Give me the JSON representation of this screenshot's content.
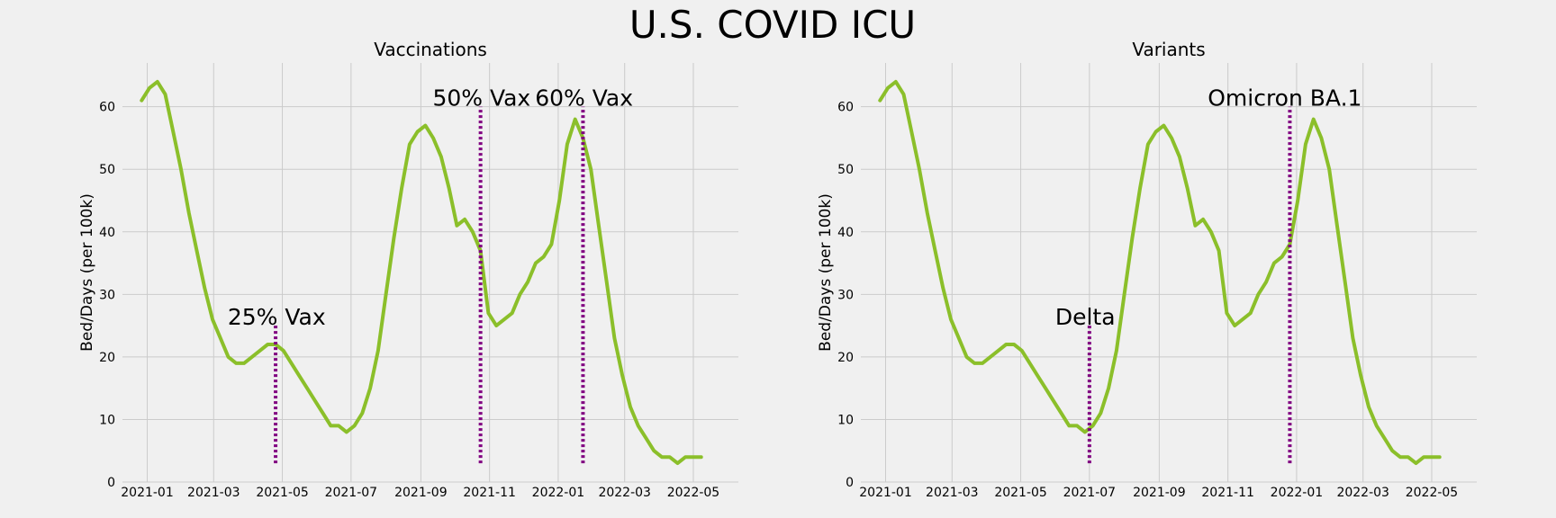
{
  "title": "U.S. COVID ICU",
  "chart_data": [
    {
      "type": "line",
      "title": "Vaccinations",
      "ylabel": "Bed/Days (per 100k)",
      "xlabel": "",
      "grid": true,
      "xlim": [
        "2020-12-10",
        "2022-06-10"
      ],
      "ylim": [
        0,
        67
      ],
      "x_ticks": [
        "2021-01",
        "2021-03",
        "2021-05",
        "2021-07",
        "2021-09",
        "2021-11",
        "2022-01",
        "2022-03",
        "2022-05"
      ],
      "y_ticks": [
        0,
        10,
        20,
        30,
        40,
        50,
        60
      ],
      "series": [
        {
          "color": "#8bbf2a",
          "x": [
            "2020-12-27",
            "2021-01-03",
            "2021-01-10",
            "2021-01-17",
            "2021-01-24",
            "2021-01-31",
            "2021-02-07",
            "2021-02-14",
            "2021-02-21",
            "2021-02-28",
            "2021-03-07",
            "2021-03-14",
            "2021-03-21",
            "2021-03-28",
            "2021-04-04",
            "2021-04-11",
            "2021-04-18",
            "2021-04-25",
            "2021-05-02",
            "2021-05-09",
            "2021-05-16",
            "2021-05-23",
            "2021-05-30",
            "2021-06-06",
            "2021-06-13",
            "2021-06-20",
            "2021-06-27",
            "2021-07-04",
            "2021-07-11",
            "2021-07-18",
            "2021-07-25",
            "2021-08-01",
            "2021-08-08",
            "2021-08-15",
            "2021-08-22",
            "2021-08-29",
            "2021-09-05",
            "2021-09-12",
            "2021-09-19",
            "2021-09-26",
            "2021-10-03",
            "2021-10-10",
            "2021-10-17",
            "2021-10-24",
            "2021-10-31",
            "2021-11-07",
            "2021-11-14",
            "2021-11-21",
            "2021-11-28",
            "2021-12-05",
            "2021-12-12",
            "2021-12-19",
            "2021-12-26",
            "2022-01-02",
            "2022-01-09",
            "2022-01-16",
            "2022-01-23",
            "2022-01-30",
            "2022-02-06",
            "2022-02-13",
            "2022-02-20",
            "2022-02-27",
            "2022-03-06",
            "2022-03-13",
            "2022-03-20",
            "2022-03-27",
            "2022-04-03",
            "2022-04-10",
            "2022-04-17",
            "2022-04-24",
            "2022-05-01",
            "2022-05-08"
          ],
          "values": [
            61,
            63,
            64,
            62,
            56,
            50,
            43,
            37,
            31,
            26,
            23,
            20,
            19,
            19,
            20,
            21,
            22,
            22,
            21,
            19,
            17,
            15,
            13,
            11,
            9,
            9,
            8,
            9,
            11,
            15,
            21,
            30,
            39,
            47,
            54,
            56,
            57,
            55,
            52,
            47,
            41,
            42,
            40,
            37,
            27,
            25,
            26,
            27,
            30,
            32,
            35,
            36,
            38,
            45,
            54,
            58,
            55,
            50,
            41,
            32,
            23,
            17,
            12,
            9,
            7,
            5,
            4,
            4,
            3,
            4,
            4,
            4
          ]
        }
      ],
      "annotations": [
        {
          "x": "2021-04-25",
          "y_range": [
            3,
            25
          ],
          "label": "25% Vax"
        },
        {
          "x": "2021-10-24",
          "y_range": [
            3,
            60
          ],
          "label": "50% Vax"
        },
        {
          "x": "2022-01-23",
          "y_range": [
            3,
            60
          ],
          "label": "60% Vax"
        }
      ]
    },
    {
      "type": "line",
      "title": "Variants",
      "ylabel": "Bed/Days (per 100k)",
      "xlabel": "",
      "grid": true,
      "xlim": [
        "2020-12-10",
        "2022-06-10"
      ],
      "ylim": [
        0,
        67
      ],
      "x_ticks": [
        "2021-01",
        "2021-03",
        "2021-05",
        "2021-07",
        "2021-09",
        "2021-11",
        "2022-01",
        "2022-03",
        "2022-05"
      ],
      "y_ticks": [
        0,
        10,
        20,
        30,
        40,
        50,
        60
      ],
      "series": [
        {
          "color": "#8bbf2a",
          "x": [
            "2020-12-27",
            "2021-01-03",
            "2021-01-10",
            "2021-01-17",
            "2021-01-24",
            "2021-01-31",
            "2021-02-07",
            "2021-02-14",
            "2021-02-21",
            "2021-02-28",
            "2021-03-07",
            "2021-03-14",
            "2021-03-21",
            "2021-03-28",
            "2021-04-04",
            "2021-04-11",
            "2021-04-18",
            "2021-04-25",
            "2021-05-02",
            "2021-05-09",
            "2021-05-16",
            "2021-05-23",
            "2021-05-30",
            "2021-06-06",
            "2021-06-13",
            "2021-06-20",
            "2021-06-27",
            "2021-07-04",
            "2021-07-11",
            "2021-07-18",
            "2021-07-25",
            "2021-08-01",
            "2021-08-08",
            "2021-08-15",
            "2021-08-22",
            "2021-08-29",
            "2021-09-05",
            "2021-09-12",
            "2021-09-19",
            "2021-09-26",
            "2021-10-03",
            "2021-10-10",
            "2021-10-17",
            "2021-10-24",
            "2021-10-31",
            "2021-11-07",
            "2021-11-14",
            "2021-11-21",
            "2021-11-28",
            "2021-12-05",
            "2021-12-12",
            "2021-12-19",
            "2021-12-26",
            "2022-01-02",
            "2022-01-09",
            "2022-01-16",
            "2022-01-23",
            "2022-01-30",
            "2022-02-06",
            "2022-02-13",
            "2022-02-20",
            "2022-02-27",
            "2022-03-06",
            "2022-03-13",
            "2022-03-20",
            "2022-03-27",
            "2022-04-03",
            "2022-04-10",
            "2022-04-17",
            "2022-04-24",
            "2022-05-01",
            "2022-05-08"
          ],
          "values": [
            61,
            63,
            64,
            62,
            56,
            50,
            43,
            37,
            31,
            26,
            23,
            20,
            19,
            19,
            20,
            21,
            22,
            22,
            21,
            19,
            17,
            15,
            13,
            11,
            9,
            9,
            8,
            9,
            11,
            15,
            21,
            30,
            39,
            47,
            54,
            56,
            57,
            55,
            52,
            47,
            41,
            42,
            40,
            37,
            27,
            25,
            26,
            27,
            30,
            32,
            35,
            36,
            38,
            45,
            54,
            58,
            55,
            50,
            41,
            32,
            23,
            17,
            12,
            9,
            7,
            5,
            4,
            4,
            3,
            4,
            4,
            4
          ]
        }
      ],
      "annotations": [
        {
          "x": "2021-07-01",
          "y_range": [
            3,
            25
          ],
          "label": "Delta"
        },
        {
          "x": "2021-12-26",
          "y_range": [
            3,
            60
          ],
          "label": "Omicron BA.1"
        }
      ]
    }
  ]
}
